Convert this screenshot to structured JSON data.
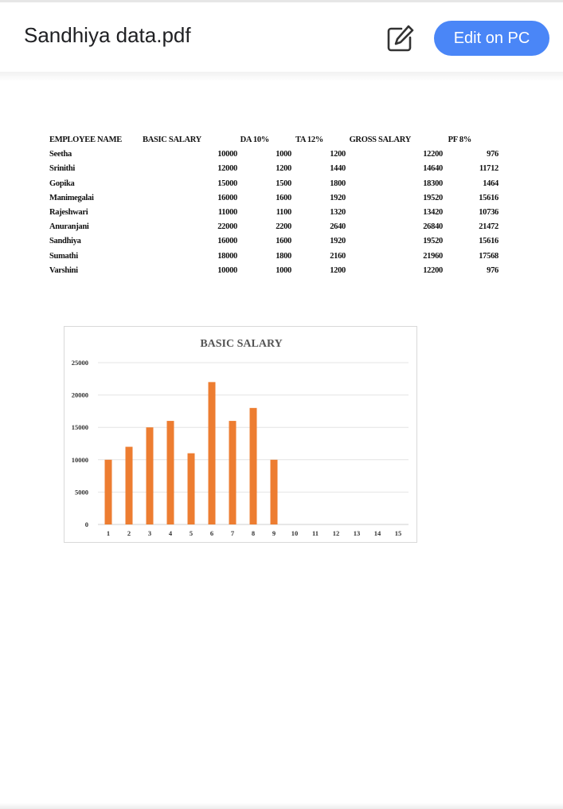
{
  "header": {
    "title": "Sandhiya data.pdf",
    "edit_icon": "edit-pencil-icon",
    "edit_on_pc_label": "Edit on PC",
    "accent_color": "#4a86f7"
  },
  "table": {
    "headers": [
      "EMPLOYEE NAME",
      "BASIC SALARY",
      "DA 10%",
      "TA 12%",
      "GROSS SALARY",
      "PF 8%"
    ],
    "rows": [
      [
        "Seetha",
        "10000",
        "1000",
        "1200",
        "12200",
        "976"
      ],
      [
        "Srinithi",
        "12000",
        "1200",
        "1440",
        "14640",
        "11712"
      ],
      [
        "Gopika",
        "15000",
        "1500",
        "1800",
        "18300",
        "1464"
      ],
      [
        "Manimegalai",
        "16000",
        "1600",
        "1920",
        "19520",
        "15616"
      ],
      [
        "Rajeshwari",
        "11000",
        "1100",
        "1320",
        "13420",
        "10736"
      ],
      [
        "Anuranjani",
        "22000",
        "2200",
        "2640",
        "26840",
        "21472"
      ],
      [
        "Sandhiya",
        "16000",
        "1600",
        "1920",
        "19520",
        "15616"
      ],
      [
        "Sumathi",
        "18000",
        "1800",
        "2160",
        "21960",
        "17568"
      ],
      [
        "Varshini",
        "10000",
        "1000",
        "1200",
        "12200",
        "976"
      ]
    ]
  },
  "chart_data": {
    "type": "bar",
    "title": "BASIC SALARY",
    "categories": [
      "1",
      "2",
      "3",
      "4",
      "5",
      "6",
      "7",
      "8",
      "9",
      "10",
      "11",
      "12",
      "13",
      "14",
      "15"
    ],
    "values": [
      10000,
      12000,
      15000,
      16000,
      11000,
      22000,
      16000,
      18000,
      10000,
      null,
      null,
      null,
      null,
      null,
      null
    ],
    "ylim": [
      0,
      25000
    ],
    "yticks": [
      "0",
      "5000",
      "10000",
      "15000",
      "20000",
      "25000"
    ],
    "grid": true,
    "bar_color": "#ed7d31"
  }
}
